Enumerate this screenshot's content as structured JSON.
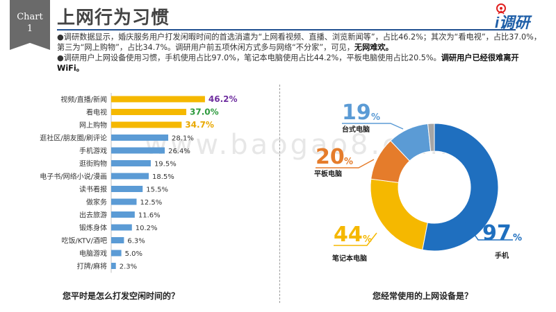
{
  "header": {
    "chart_tag_line1": "Chart",
    "chart_tag_line2": "1",
    "title": "上网行为习惯",
    "logo_text": "i调研"
  },
  "summary": {
    "p1": "●调研数据显示，婚庆服务用户打发闲暇时间的首选消遣为“上网看视频、直播、浏览新闻等”，占比46.2%；其次为“看电视”，占比37.0%，第三为“网上购物”，占比34.7%。调研用户前五项休闲方式多与网络“不分家”，可见，",
    "p1_bold": "无网难欢。",
    "p2": "●调研用户上网设备使用习惯，手机使用占比97.0%，笔记本电脑使用占比44.2%，平板电脑使用占比20.5%。",
    "p2_bold": "调研用户已经很难离开WiFi。"
  },
  "watermark": "www.baogao8.com",
  "captions": {
    "left": "您平时是怎么打发空闲时间的？",
    "right": "您经常使用的上网设备是？"
  },
  "colors": {
    "highlight_bar": "#f5b800",
    "normal_bar": "#5b9bd5",
    "purple_label": "#7030a0",
    "green_label": "#2e9a3e",
    "orange_label": "#e9a800",
    "phone": "#1f6fbf",
    "laptop": "#f5b800",
    "tablet": "#e57c2b",
    "desktop": "#5b9bd5",
    "other": "#a6a6a6"
  },
  "chart_data": [
    {
      "type": "bar",
      "orientation": "horizontal",
      "categories": [
        "视频/直播/新闻",
        "看电视",
        "网上购物",
        "逛社区/朋友圈/刷评论",
        "手机游戏",
        "逛街购物",
        "电子书/网络小说/漫画",
        "读书看报",
        "做家务",
        "出去旅游",
        "锻炼身体",
        "吃饭/KTV/酒吧",
        "电脑游戏",
        "打牌/麻将"
      ],
      "values": [
        46.2,
        37.0,
        34.7,
        28.1,
        26.4,
        19.5,
        18.5,
        15.5,
        12.5,
        11.6,
        10.2,
        6.3,
        5.0,
        2.3
      ],
      "value_labels": [
        "46.2%",
        "37.0%",
        "34.7%",
        "28.1%",
        "26.4%",
        "19.5%",
        "18.5%",
        "15.5%",
        "12.5%",
        "11.6%",
        "10.2%",
        "6.3%",
        "5.0%",
        "2.3%"
      ],
      "highlighted_top": 3,
      "xlim": [
        0,
        50
      ],
      "title": "您平时是怎么打发空闲时间的？"
    },
    {
      "type": "pie",
      "style": "donut",
      "labels": [
        "手机",
        "笔记本电脑",
        "平板电脑",
        "台式电脑"
      ],
      "values": [
        97,
        44,
        20,
        19
      ],
      "value_labels": [
        "97",
        "44",
        "20",
        "19"
      ],
      "unit": "%",
      "title": "您经常使用的上网设备是？"
    }
  ]
}
